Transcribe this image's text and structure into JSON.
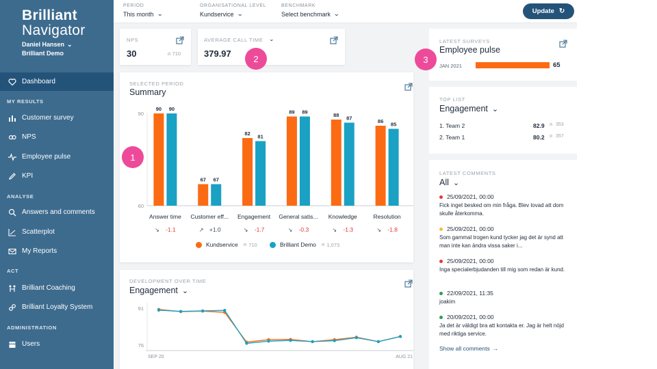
{
  "brand": {
    "line1": "Brilliant",
    "line2": "Navigator"
  },
  "user": {
    "name": "Daniel Hansen",
    "org": "Brilliant Demo"
  },
  "sidebar": {
    "dashboard": "Dashboard",
    "sections": {
      "my_results": "MY RESULTS",
      "analyse": "ANALYSE",
      "act": "ACT",
      "administration": "ADMINISTRATION"
    },
    "items": {
      "customer_survey": "Customer survey",
      "nps": "NPS",
      "employee_pulse": "Employee pulse",
      "kpi": "KPI",
      "answers_comments": "Answers and comments",
      "scatterplot": "Scatterplot",
      "my_reports": "My Reports",
      "coaching": "Brilliant Coaching",
      "loyalty": "Brilliant Loyalty System",
      "users": "Users"
    }
  },
  "filters": {
    "period": {
      "label": "PERIOD",
      "value": "This month"
    },
    "org_level": {
      "label": "ORGANISATIONAL LEVEL",
      "value": "Kundservice"
    },
    "benchmark": {
      "label": "BENCHMARK",
      "value": "Select benchmark"
    },
    "update": "Update"
  },
  "nps_card": {
    "label": "NPS",
    "value": "30",
    "count": "710"
  },
  "call_time_card": {
    "label": "AVERAGE CALL TIME",
    "value": "379.97"
  },
  "bubbles": {
    "one": "1",
    "two": "2",
    "three": "3"
  },
  "summary": {
    "label": "SELECTED PERIOD",
    "title": "Summary",
    "legend": {
      "a_name": "Kundservice",
      "a_count": "710",
      "b_name": "Brilliant Demo",
      "b_count": "1,073"
    }
  },
  "development": {
    "label": "DEVELOPMENT OVER TIME",
    "title": "Engagement"
  },
  "latest_surveys": {
    "label": "LATEST SURVEYS",
    "title": "Employee pulse",
    "date": "JAN 2021",
    "value": "65",
    "fraction": 0.65
  },
  "top_list": {
    "label": "TOP LIST",
    "title": "Engagement",
    "rows": [
      {
        "name": "1. Team 2",
        "score": "82.9",
        "count": "353"
      },
      {
        "name": "2. Team 1",
        "score": "80.2",
        "count": "357"
      }
    ]
  },
  "comments": {
    "label": "LATEST COMMENTS",
    "filter": "All",
    "items": [
      {
        "date": "25/09/2021, 00:00",
        "text": "Fick inget besked om min fråga. Blev lovad att dom skulle återkomma.",
        "color": "#e53935"
      },
      {
        "date": "25/09/2021, 00:00",
        "text": "Som gammal trogen kund tycker jag det är synd att man inte kan ändra vissa saker i...",
        "color": "#f2c12e"
      },
      {
        "date": "25/09/2021, 00:00",
        "text": "Inga specialerbjudanden till mig som redan är kund.",
        "color": "#e53935"
      },
      {
        "date": "22/09/2021, 11:35",
        "text": "joakim",
        "color": "#2e9e4f"
      },
      {
        "date": "20/09/2021, 00:00",
        "text": "Ja det är väldigt bra att kontakta er. Jag är helt nöjd med riktiga service.",
        "color": "#2e9e4f"
      }
    ],
    "show_all": "Show all comments"
  },
  "colors": {
    "orange": "#fb6b13",
    "teal": "#1aa1c4",
    "sidebar": "#3d6b8e",
    "active": "#24537a"
  },
  "chart_data": [
    {
      "type": "bar",
      "title": "Summary",
      "categories": [
        "Answer time",
        "Customer eff...",
        "Engagement",
        "General satis...",
        "Knowledge",
        "Resolution"
      ],
      "series": [
        {
          "name": "Kundservice",
          "values": [
            90,
            67,
            82,
            89,
            88,
            86
          ]
        },
        {
          "name": "Brilliant Demo",
          "values": [
            90,
            67,
            81,
            89,
            87,
            85
          ]
        }
      ],
      "deltas": [
        "-1.1",
        "+1.0",
        "-1.7",
        "-0.3",
        "-1.3",
        "-1.8"
      ],
      "delta_dirs": [
        "down",
        "up",
        "down",
        "down",
        "down",
        "down"
      ],
      "yticks": [
        "90",
        "60"
      ],
      "ylim": [
        60,
        90
      ]
    },
    {
      "type": "line",
      "title": "Engagement",
      "x_start": "SEP 20",
      "x_end": "AUG 21",
      "yticks": [
        "91",
        "76"
      ],
      "ylim": [
        76,
        91
      ],
      "series": [
        {
          "name": "Kundservice",
          "values": [
            90.5,
            89.6,
            89.8,
            89.3,
            77.2,
            78.2,
            78.3,
            77.4,
            78.2,
            79.2,
            77.4,
            79.5
          ]
        },
        {
          "name": "Brilliant Demo",
          "values": [
            90.2,
            89.7,
            89.9,
            90.1,
            76.7,
            77.6,
            77.9,
            77.4,
            77.8,
            79.0,
            77.4,
            79.5
          ]
        }
      ]
    }
  ]
}
